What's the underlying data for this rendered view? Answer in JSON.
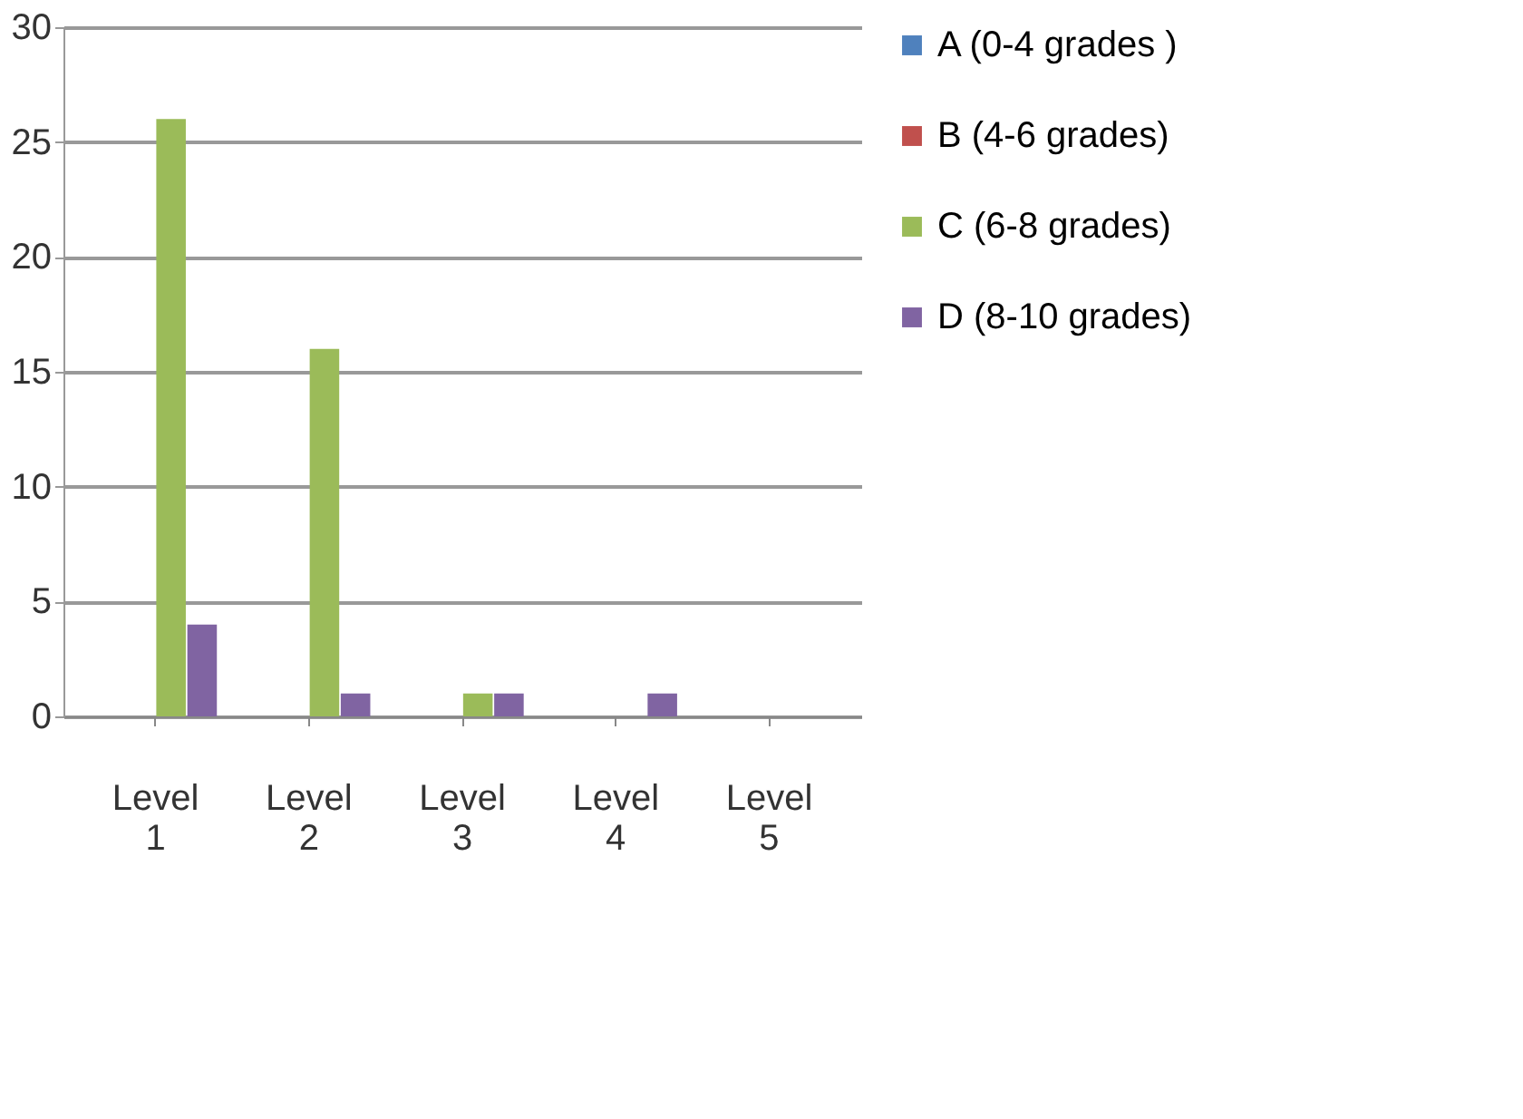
{
  "chart_data": {
    "type": "bar",
    "categories": [
      "Level 1",
      "Level 2",
      "Level 3",
      "Level 4",
      "Level 5"
    ],
    "series": [
      {
        "name": "A (0-4 grades )",
        "color": "#4f81bd",
        "values": [
          0,
          0,
          0,
          0,
          0
        ]
      },
      {
        "name": "B (4-6 grades)",
        "color": "#c0504d",
        "values": [
          0,
          0,
          0,
          0,
          0
        ]
      },
      {
        "name": "C (6-8 grades)",
        "color": "#9bbb59",
        "values": [
          26,
          16,
          1,
          0,
          0
        ]
      },
      {
        "name": "D (8-10 grades)",
        "color": "#8064a2",
        "values": [
          4,
          1,
          1,
          1,
          0
        ]
      }
    ],
    "ylim": [
      0,
      30
    ],
    "yticks": [
      0,
      5,
      10,
      15,
      20,
      25,
      30
    ],
    "grid": "y",
    "legend": "right"
  }
}
